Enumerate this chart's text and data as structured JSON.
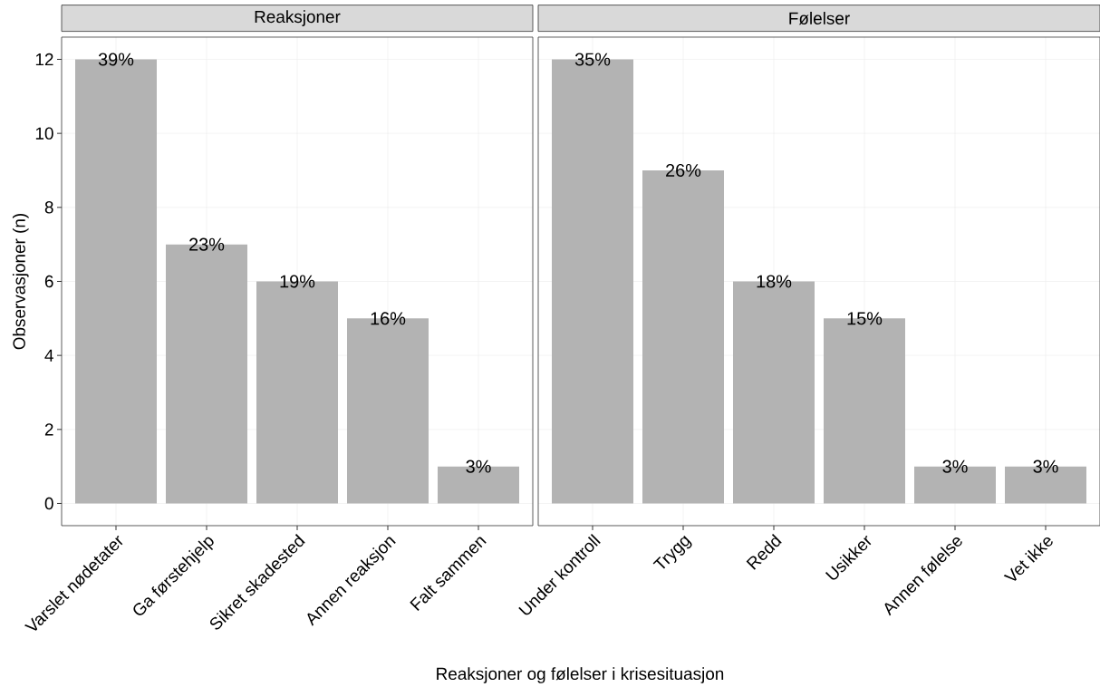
{
  "chart_data": [
    {
      "type": "bar",
      "title": "Reaksjoner",
      "xlabel": "Reaksjoner og følelser i krisesituasjon",
      "ylabel": "Observasjoner (n)",
      "categories": [
        "Varslet nødetater",
        "Ga førstehjelp",
        "Sikret skadested",
        "Annen reaksjon",
        "Falt sammen"
      ],
      "values": [
        12,
        7,
        6,
        5,
        1
      ],
      "color": "#b3b3b3",
      "ylim": [
        -0.6,
        12.6
      ],
      "yticks": [
        0,
        2,
        4,
        6,
        8,
        10,
        12
      ],
      "grid": true,
      "annotations": [
        {
          "text": "39%",
          "x": "Varslet nødetater",
          "y": 12
        },
        {
          "text": "23%",
          "x": "Ga førstehjelp",
          "y": 7
        },
        {
          "text": "19%",
          "x": "Sikret skadested",
          "y": 6
        },
        {
          "text": "16%",
          "x": "Annen reaksjon",
          "y": 5
        },
        {
          "text": "3%",
          "x": "Falt sammen",
          "y": 1
        }
      ]
    },
    {
      "type": "bar",
      "title": "Følelser",
      "categories": [
        "Under kontroll",
        "Trygg",
        "Redd",
        "Usikker",
        "Annen følelse",
        "Vet ikke"
      ],
      "values": [
        12,
        9,
        6,
        5,
        1,
        1
      ],
      "color": "#b3b3b3",
      "ylim": [
        -0.6,
        12.6
      ],
      "yticks": [
        0,
        2,
        4,
        6,
        8,
        10,
        12
      ],
      "grid": true,
      "tick_labels": "x",
      "annotations": [
        {
          "text": "35%",
          "x": "Under kontroll",
          "y": 12
        },
        {
          "text": "26%",
          "x": "Trygg",
          "y": 9
        },
        {
          "text": "18%",
          "x": "Redd",
          "y": 6
        },
        {
          "text": "15%",
          "x": "Usikker",
          "y": 5
        },
        {
          "text": "3%",
          "x": "Annen følelse",
          "y": 1
        },
        {
          "text": "3%",
          "x": "Vet ikke",
          "y": 1
        }
      ]
    }
  ]
}
